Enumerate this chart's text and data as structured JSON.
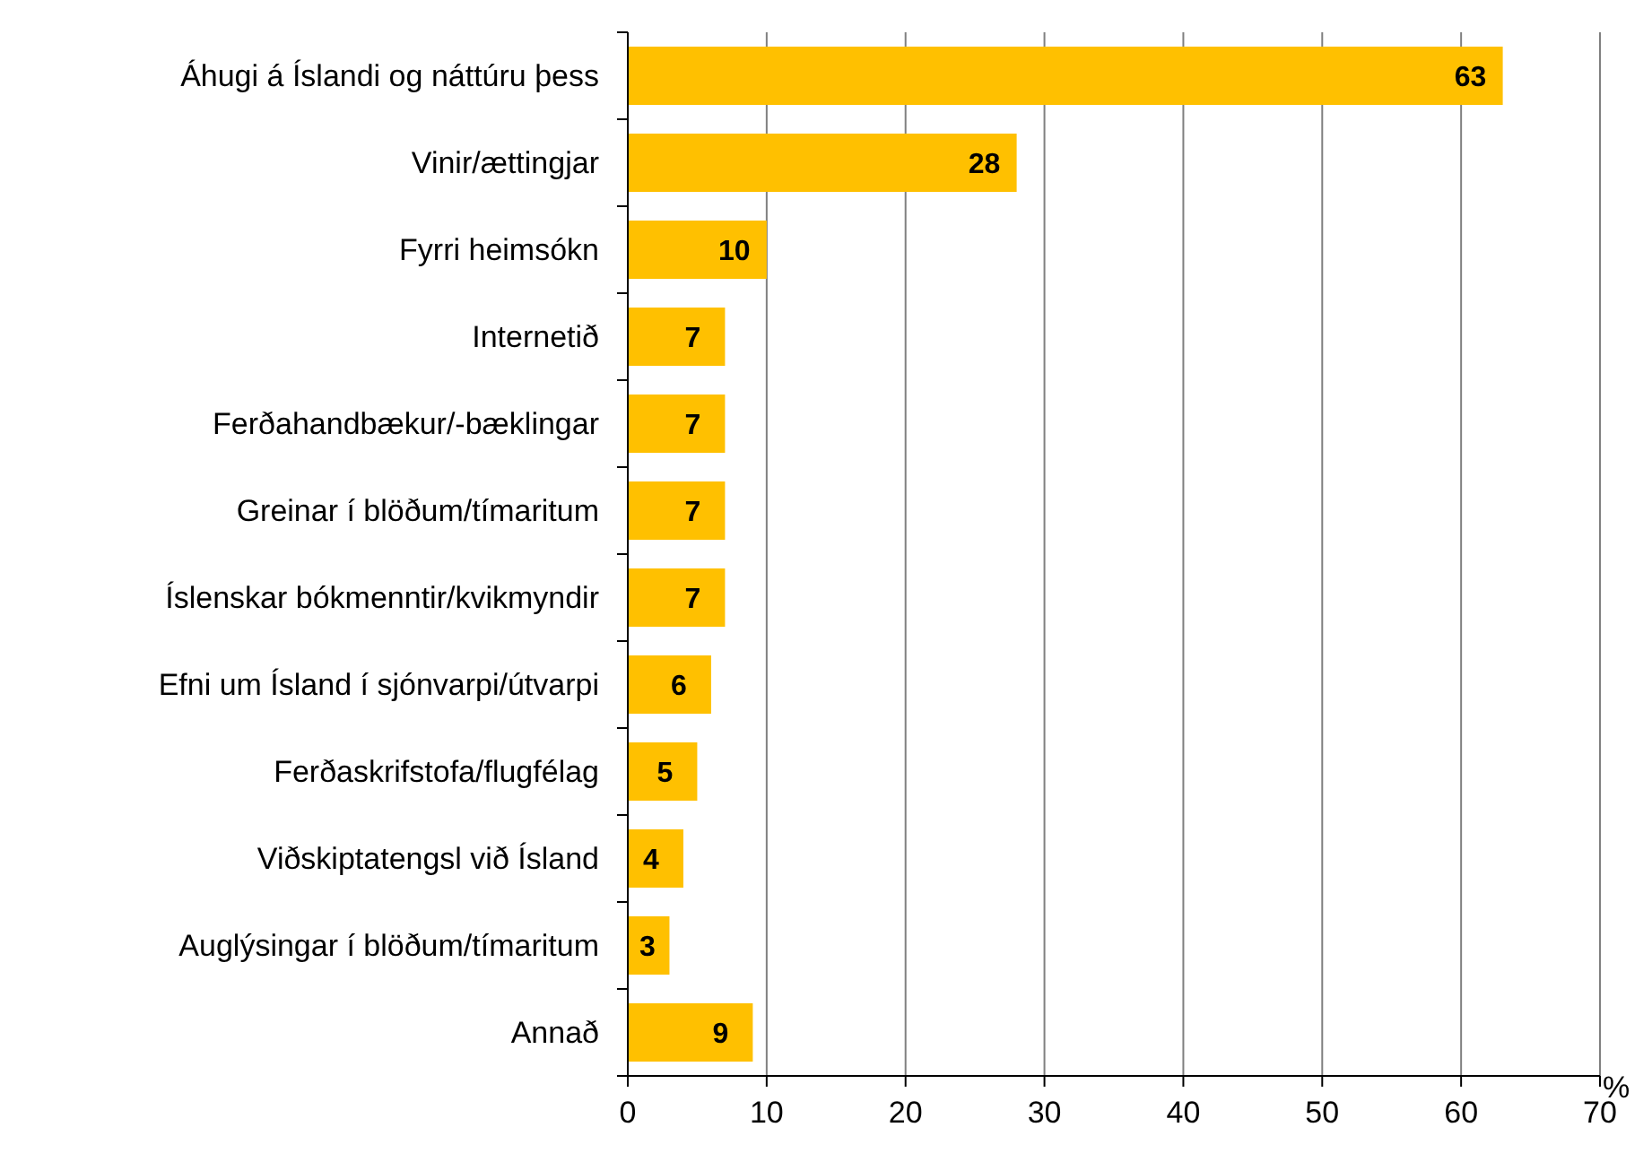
{
  "chart_data": {
    "type": "bar",
    "orientation": "horizontal",
    "xlabel": "%",
    "categories": [
      "Áhugi á Íslandi og náttúru þess",
      "Vinir/ættingjar",
      "Fyrri heimsókn",
      "Internetið",
      "Ferðahandbækur/-bæklingar",
      "Greinar í blöðum/tímaritum",
      "Íslenskar bókmenntir/kvikmyndir",
      "Efni um Ísland í sjónvarpi/útvarpi",
      "Ferðaskrifstofa/flugfélag",
      "Viðskiptatengsl við Ísland",
      "Auglýsingar í blöðum/tímaritum",
      "Annað"
    ],
    "values": [
      63,
      28,
      10,
      7,
      7,
      7,
      7,
      6,
      5,
      4,
      3,
      9
    ],
    "color": "#ffc000",
    "xlim": [
      0,
      70
    ],
    "xticks": [
      0,
      10,
      20,
      30,
      40,
      50,
      60,
      70
    ],
    "grid": "x",
    "data_labels": true
  }
}
